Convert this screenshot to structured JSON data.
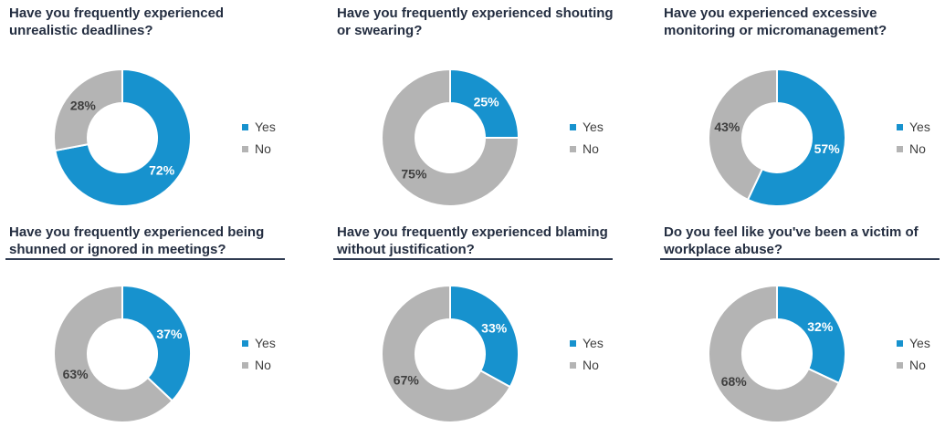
{
  "page": {
    "background": "#FFFFFF"
  },
  "colors": {
    "yes": "#1792CE",
    "no": "#B4B4B4",
    "title": "#242E41",
    "divider": "#303C52",
    "label_on_yes": "#FFFFFF",
    "label_on_no": "#3F3F3F",
    "legend_text": "#3F3F3F"
  },
  "legend": {
    "position": "right",
    "items": [
      {
        "label": "Yes",
        "key": "yes"
      },
      {
        "label": "No",
        "key": "no"
      }
    ]
  },
  "chart_data": [
    {
      "type": "donut",
      "title": "Have you frequently experienced\nunrealistic deadlines?",
      "categories": [
        "Yes",
        "No"
      ],
      "values": [
        72,
        28
      ],
      "labels": [
        "72%",
        "28%"
      ],
      "divider": false,
      "hole_ratio": 0.5,
      "start_angle_deg": 0,
      "direction": "clockwise",
      "legend_position": "right"
    },
    {
      "type": "donut",
      "title": "Have you frequently experienced shouting\nor swearing?",
      "categories": [
        "Yes",
        "No"
      ],
      "values": [
        25,
        75
      ],
      "labels": [
        "25%",
        "75%"
      ],
      "divider": false,
      "hole_ratio": 0.5,
      "start_angle_deg": 0,
      "direction": "clockwise",
      "legend_position": "right"
    },
    {
      "type": "donut",
      "title": "Have you experienced excessive\nmonitoring or micromanagement?",
      "categories": [
        "Yes",
        "No"
      ],
      "values": [
        57,
        43
      ],
      "labels": [
        "57%",
        "43%"
      ],
      "divider": false,
      "hole_ratio": 0.5,
      "start_angle_deg": 0,
      "direction": "clockwise",
      "legend_position": "right"
    },
    {
      "type": "donut",
      "title": "Have you frequently experienced being\nshunned or ignored in meetings?",
      "categories": [
        "Yes",
        "No"
      ],
      "values": [
        37,
        63
      ],
      "labels": [
        "37%",
        "63%"
      ],
      "divider": true,
      "hole_ratio": 0.5,
      "start_angle_deg": 0,
      "direction": "clockwise",
      "legend_position": "right"
    },
    {
      "type": "donut",
      "title": "Have you frequently experienced blaming\nwithout justification?",
      "categories": [
        "Yes",
        "No"
      ],
      "values": [
        33,
        67
      ],
      "labels": [
        "33%",
        "67%"
      ],
      "divider": true,
      "hole_ratio": 0.5,
      "start_angle_deg": 0,
      "direction": "clockwise",
      "legend_position": "right"
    },
    {
      "type": "donut",
      "title": "Do you feel like you've been a victim of\nworkplace abuse?",
      "categories": [
        "Yes",
        "No"
      ],
      "values": [
        32,
        68
      ],
      "labels": [
        "32%",
        "68%"
      ],
      "divider": true,
      "hole_ratio": 0.5,
      "start_angle_deg": 0,
      "direction": "clockwise",
      "legend_position": "right"
    }
  ]
}
